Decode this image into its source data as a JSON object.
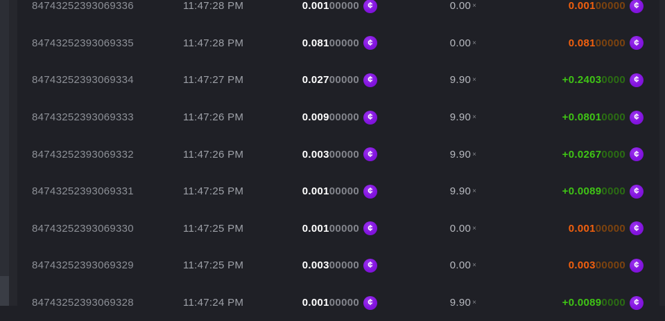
{
  "colors": {
    "background": "#1f2026",
    "accent_purple": "#8315df",
    "win_green": "#3fc415",
    "win_green_dim": "#2b6d13",
    "loss_orange": "#f2600e",
    "loss_orange_dim": "#7c430f",
    "bet_white": "#ffffff",
    "dim_gray": "#84868d"
  },
  "coin": {
    "glyph": "¢"
  },
  "multiplier_suffix": "×",
  "rows": [
    {
      "id": "84743252393069336",
      "time": "11:47:28 PM",
      "bet_main": "0.001",
      "bet_zeros": "00000",
      "multiplier": "0.00",
      "payout_main": "0.001",
      "payout_zeros": "00000",
      "result": "loss"
    },
    {
      "id": "84743252393069335",
      "time": "11:47:28 PM",
      "bet_main": "0.081",
      "bet_zeros": "00000",
      "multiplier": "0.00",
      "payout_main": "0.081",
      "payout_zeros": "00000",
      "result": "loss"
    },
    {
      "id": "84743252393069334",
      "time": "11:47:27 PM",
      "bet_main": "0.027",
      "bet_zeros": "00000",
      "multiplier": "9.90",
      "payout_main": "+0.2403",
      "payout_zeros": "0000",
      "result": "win"
    },
    {
      "id": "84743252393069333",
      "time": "11:47:26 PM",
      "bet_main": "0.009",
      "bet_zeros": "00000",
      "multiplier": "9.90",
      "payout_main": "+0.0801",
      "payout_zeros": "0000",
      "result": "win"
    },
    {
      "id": "84743252393069332",
      "time": "11:47:26 PM",
      "bet_main": "0.003",
      "bet_zeros": "00000",
      "multiplier": "9.90",
      "payout_main": "+0.0267",
      "payout_zeros": "0000",
      "result": "win"
    },
    {
      "id": "84743252393069331",
      "time": "11:47:25 PM",
      "bet_main": "0.001",
      "bet_zeros": "00000",
      "multiplier": "9.90",
      "payout_main": "+0.0089",
      "payout_zeros": "0000",
      "result": "win"
    },
    {
      "id": "84743252393069330",
      "time": "11:47:25 PM",
      "bet_main": "0.001",
      "bet_zeros": "00000",
      "multiplier": "0.00",
      "payout_main": "0.001",
      "payout_zeros": "00000",
      "result": "loss"
    },
    {
      "id": "84743252393069329",
      "time": "11:47:25 PM",
      "bet_main": "0.003",
      "bet_zeros": "00000",
      "multiplier": "0.00",
      "payout_main": "0.003",
      "payout_zeros": "00000",
      "result": "loss"
    },
    {
      "id": "84743252393069328",
      "time": "11:47:24 PM",
      "bet_main": "0.001",
      "bet_zeros": "00000",
      "multiplier": "9.90",
      "payout_main": "+0.0089",
      "payout_zeros": "0000",
      "result": "win"
    }
  ]
}
